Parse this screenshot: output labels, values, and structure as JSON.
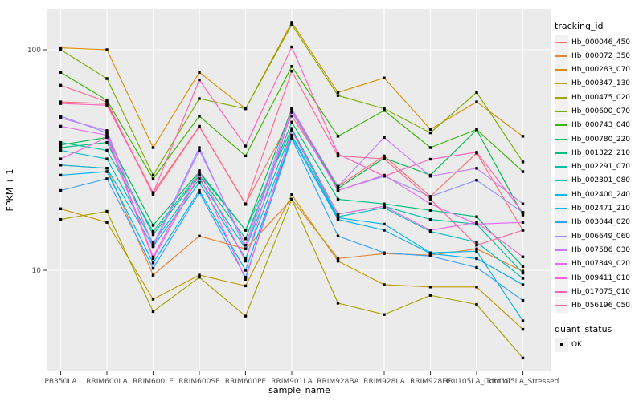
{
  "chart": {
    "x_axis_title": "sample_name",
    "y_axis_title": "FPKM + 1",
    "legend_title": "tracking_id",
    "quant_legend_title": "quant_status",
    "quant_legend_items": [
      {
        "label": "OK",
        "marker": "black-square"
      }
    ]
  },
  "chart_data": {
    "type": "line",
    "title": "",
    "xlabel": "sample_name",
    "ylabel": "FPKM + 1",
    "y_scale": "log10",
    "y_ticks": [
      100,
      10
    ],
    "y_minor_ticks": [
      31.6
    ],
    "ylim": [
      3.5,
      160
    ],
    "grid": true,
    "legend_position": "right",
    "point_marker": "black-square",
    "categories": [
      "PB350LA",
      "RRIM600LA",
      "RRIM600LE",
      "RRIM600SE",
      "RRIM600PE",
      "RRIM901LA",
      "RRIM928BA",
      "RRIM928LA",
      "RRIM928LE",
      "RRII105LA_Control",
      "RRII105LA_Stressed"
    ],
    "series": [
      {
        "name": "Hb_000046_450",
        "color": "#F8766D",
        "values": [
          58,
          57,
          22.5,
          45,
          20,
          50,
          24,
          33,
          21.6,
          34,
          15.2
        ]
      },
      {
        "name": "Hb_000072_350",
        "color": "#EA8331",
        "values": [
          30,
          29,
          9.5,
          14.3,
          12.5,
          21,
          11.3,
          11.9,
          11.7,
          12.5,
          9.9
        ]
      },
      {
        "name": "Hb_000283_070",
        "color": "#D89000",
        "values": [
          102,
          100,
          36,
          79,
          54,
          133,
          64,
          74.5,
          43.5,
          58,
          40.5
        ]
      },
      {
        "name": "Hb_000347_130",
        "color": "#C09B00",
        "values": [
          19,
          16.5,
          7.4,
          9.5,
          8.5,
          22,
          11,
          8.6,
          8.4,
          8.4,
          5.4
        ]
      },
      {
        "name": "Hb_000475_020",
        "color": "#A3A500",
        "values": [
          17,
          18.5,
          6.5,
          9.3,
          6.2,
          21,
          7.1,
          6.3,
          7.7,
          7,
          4
        ]
      },
      {
        "name": "Hb_000600_070",
        "color": "#7CAE00",
        "values": [
          100,
          74,
          27,
          60,
          54,
          130,
          62,
          54,
          42,
          64,
          31
        ]
      },
      {
        "name": "Hb_000743_040",
        "color": "#39B600",
        "values": [
          79,
          59,
          26,
          50,
          33,
          84,
          40.5,
          53,
          36,
          43.5,
          28
        ]
      },
      {
        "name": "Hb_000780_220",
        "color": "#00BB4E",
        "values": [
          37,
          40,
          16,
          28,
          15.2,
          54,
          23.5,
          32.3,
          27,
          43.4,
          17.8
        ]
      },
      {
        "name": "Hb_001322_210",
        "color": "#00BF7D",
        "values": [
          36,
          38,
          14.5,
          27,
          13.9,
          47,
          21,
          20,
          18.7,
          17.5,
          10.4
        ]
      },
      {
        "name": "Hb_002291_070",
        "color": "#00C1A3",
        "values": [
          38,
          35,
          15,
          27.5,
          15.2,
          44,
          18,
          19.5,
          17,
          16.2,
          9.7
        ]
      },
      {
        "name": "Hb_002301_080",
        "color": "#00BFC4",
        "values": [
          35,
          32,
          13.3,
          26,
          12.5,
          43,
          17.5,
          19.2,
          15,
          13.4,
          9.2
        ]
      },
      {
        "name": "Hb_002400_240",
        "color": "#00BAE0",
        "values": [
          30,
          29,
          12.8,
          25,
          11.3,
          41,
          17.3,
          16.2,
          12,
          12.2,
          5.9
        ]
      },
      {
        "name": "Hb_002471_210",
        "color": "#00B0F6",
        "values": [
          27,
          28,
          10.8,
          23,
          10,
          40,
          17,
          15.2,
          11.9,
          11.3,
          8.6
        ]
      },
      {
        "name": "Hb_003044_020",
        "color": "#35A2FF",
        "values": [
          23,
          26,
          10.2,
          22.5,
          9.3,
          39.5,
          14.3,
          12,
          11.6,
          10.3,
          7.3
        ]
      },
      {
        "name": "Hb_006649_060",
        "color": "#9590FF",
        "values": [
          50,
          42,
          13,
          36,
          12.5,
          52,
          23,
          26.7,
          21.6,
          25.6,
          18.3
        ]
      },
      {
        "name": "Hb_007586_030",
        "color": "#C77CFF",
        "values": [
          49,
          43,
          12.8,
          35,
          13,
          54,
          24,
          40,
          26.7,
          29,
          20
        ]
      },
      {
        "name": "Hb_007849_020",
        "color": "#E76BF3",
        "values": [
          45,
          41,
          11.5,
          28.3,
          11,
          53,
          23,
          27,
          20,
          16.2,
          16.5
        ]
      },
      {
        "name": "Hb_009411_010",
        "color": "#FA62DB",
        "values": [
          32,
          40,
          11.3,
          27,
          9.1,
          43,
          18,
          19.5,
          15.2,
          16.5,
          11.5
        ]
      },
      {
        "name": "Hb_017075_010",
        "color": "#FF62BC",
        "values": [
          57,
          56,
          22.4,
          73,
          36.6,
          103,
          33.7,
          26.7,
          31.9,
          34.3,
          18.3
        ]
      },
      {
        "name": "Hb_056196_050",
        "color": "#FF6A98",
        "values": [
          69,
          58,
          22,
          44.8,
          19.9,
          80,
          33,
          32,
          21,
          13,
          15.2
        ]
      }
    ]
  },
  "theme": {
    "panel_bg": "#EBEBEB",
    "grid_color": "#FFFFFF",
    "tick_text_color": "#4D4D4D",
    "title_text_color": "#000000",
    "legend_key_bg": "#F2F2F2",
    "point_color": "#000000"
  }
}
